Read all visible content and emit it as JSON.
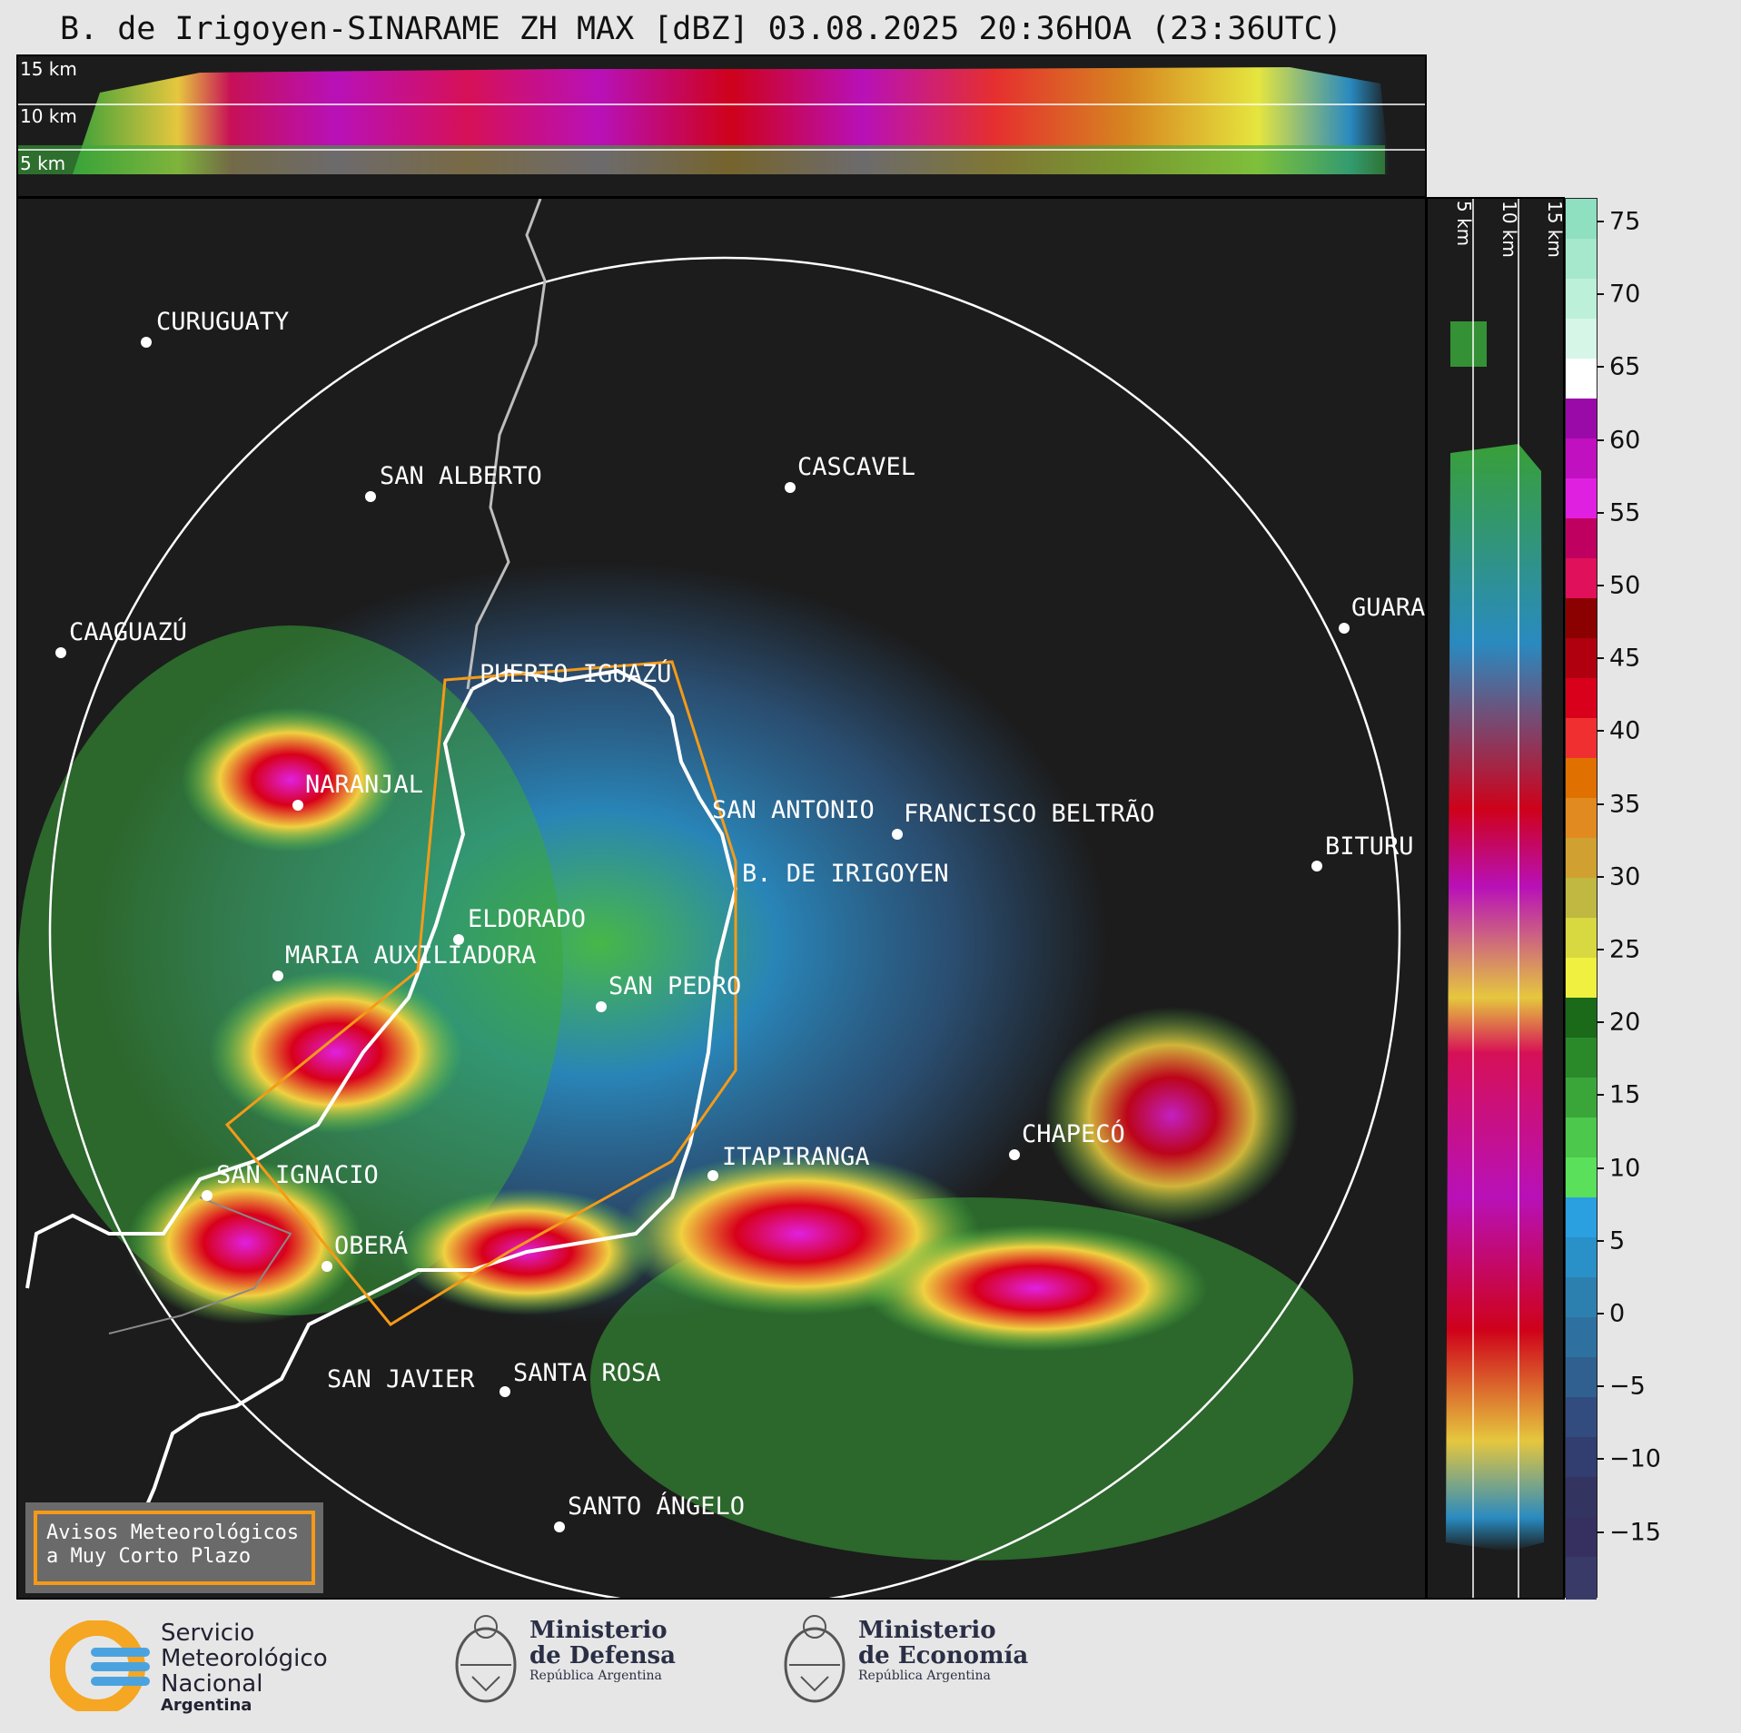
{
  "title": "B. de Irigoyen-SINARAME ZH MAX [dBZ] 03.08.2025 20:36HOA (23:36UTC)",
  "top_profile": {
    "km_labels": [
      "15 km",
      "10 km",
      "5 km"
    ]
  },
  "side_profile": {
    "km_labels": [
      "5 km",
      "10 km",
      "15 km"
    ]
  },
  "colorbar": {
    "unit": "dBZ",
    "ticks": [
      "75",
      "70",
      "65",
      "60",
      "55",
      "50",
      "45",
      "40",
      "35",
      "30",
      "25",
      "20",
      "15",
      "10",
      "5",
      "0",
      "−5",
      "−10",
      "−15"
    ],
    "colors_top_to_bottom": [
      "#8fe0c0",
      "#a6e8cc",
      "#bdf0d8",
      "#d6f6e8",
      "#ffffff",
      "#9a0aa8",
      "#c010c0",
      "#e020e0",
      "#c00060",
      "#e0105a",
      "#8b0000",
      "#b00010",
      "#d8001a",
      "#f03030",
      "#e07000",
      "#e08a20",
      "#d0a030",
      "#c0b840",
      "#d8d840",
      "#f0f040",
      "#1a6a1a",
      "#2a8a2a",
      "#3aa63a",
      "#4cc84c",
      "#5ae05a",
      "#2aa0e0",
      "#2a90c8",
      "#2c80b0",
      "#2e70a0",
      "#306090",
      "#324c80",
      "#333e70",
      "#343460",
      "#353060",
      "#3a3a68"
    ]
  },
  "cities": [
    {
      "name": "CURUGUATY"
    },
    {
      "name": "SAN ALBERTO"
    },
    {
      "name": "CASCAVEL"
    },
    {
      "name": "CAAGUAZÚ"
    },
    {
      "name": "GUARA"
    },
    {
      "name": "PUERTO IGUAZÚ"
    },
    {
      "name": "NARANJAL"
    },
    {
      "name": "SAN ANTONIO"
    },
    {
      "name": "FRANCISCO BELTRÃO"
    },
    {
      "name": "B. DE IRIGOYEN"
    },
    {
      "name": "BITURU"
    },
    {
      "name": "ELDORADO"
    },
    {
      "name": "MARIA AUXILIADORA"
    },
    {
      "name": "SAN PEDRO"
    },
    {
      "name": "CHAPECÓ"
    },
    {
      "name": "ITAPIRANGA"
    },
    {
      "name": "SAN IGNACIO"
    },
    {
      "name": "OBERÁ"
    },
    {
      "name": "SAN JAVIER"
    },
    {
      "name": "SANTA ROSA"
    },
    {
      "name": "SANTO ÁNGELO"
    }
  ],
  "warning_box": {
    "line1": "Avisos Meteorológicos",
    "line2": "a Muy Corto Plazo"
  },
  "logos": {
    "smn": {
      "line1": "Servicio",
      "line2": "Meteorológico",
      "line3": "Nacional",
      "line4": "Argentina"
    },
    "defensa": {
      "line1": "Ministerio",
      "line2": "de Defensa",
      "line3": "República Argentina"
    },
    "economia": {
      "line1": "Ministerio",
      "line2": "de Economía",
      "line3": "República Argentina"
    }
  }
}
